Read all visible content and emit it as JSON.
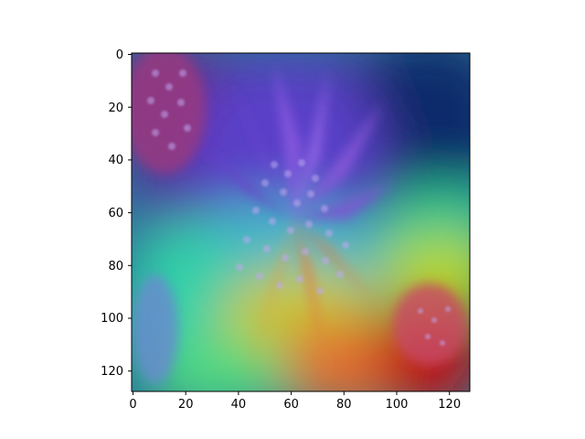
{
  "figure": {
    "image_description": "Flower photo (purple aster-like bloom with pink flowers) overlaid with a rainbow attention heatmap",
    "x_ticks": [
      "0",
      "20",
      "40",
      "60",
      "80",
      "100",
      "120"
    ],
    "y_ticks": [
      "0",
      "20",
      "40",
      "60",
      "80",
      "100",
      "120"
    ],
    "x_range": [
      0,
      128
    ],
    "y_range": [
      0,
      128
    ],
    "colors": {
      "heat_low": "#2a0a6a",
      "heat_mid_low": "#2060c0",
      "heat_mid": "#30d0a0",
      "heat_mid_high": "#c8d820",
      "heat_high": "#c01818",
      "flower_purple": "#8a5ad8",
      "flower_pink": "#c85a78"
    }
  }
}
